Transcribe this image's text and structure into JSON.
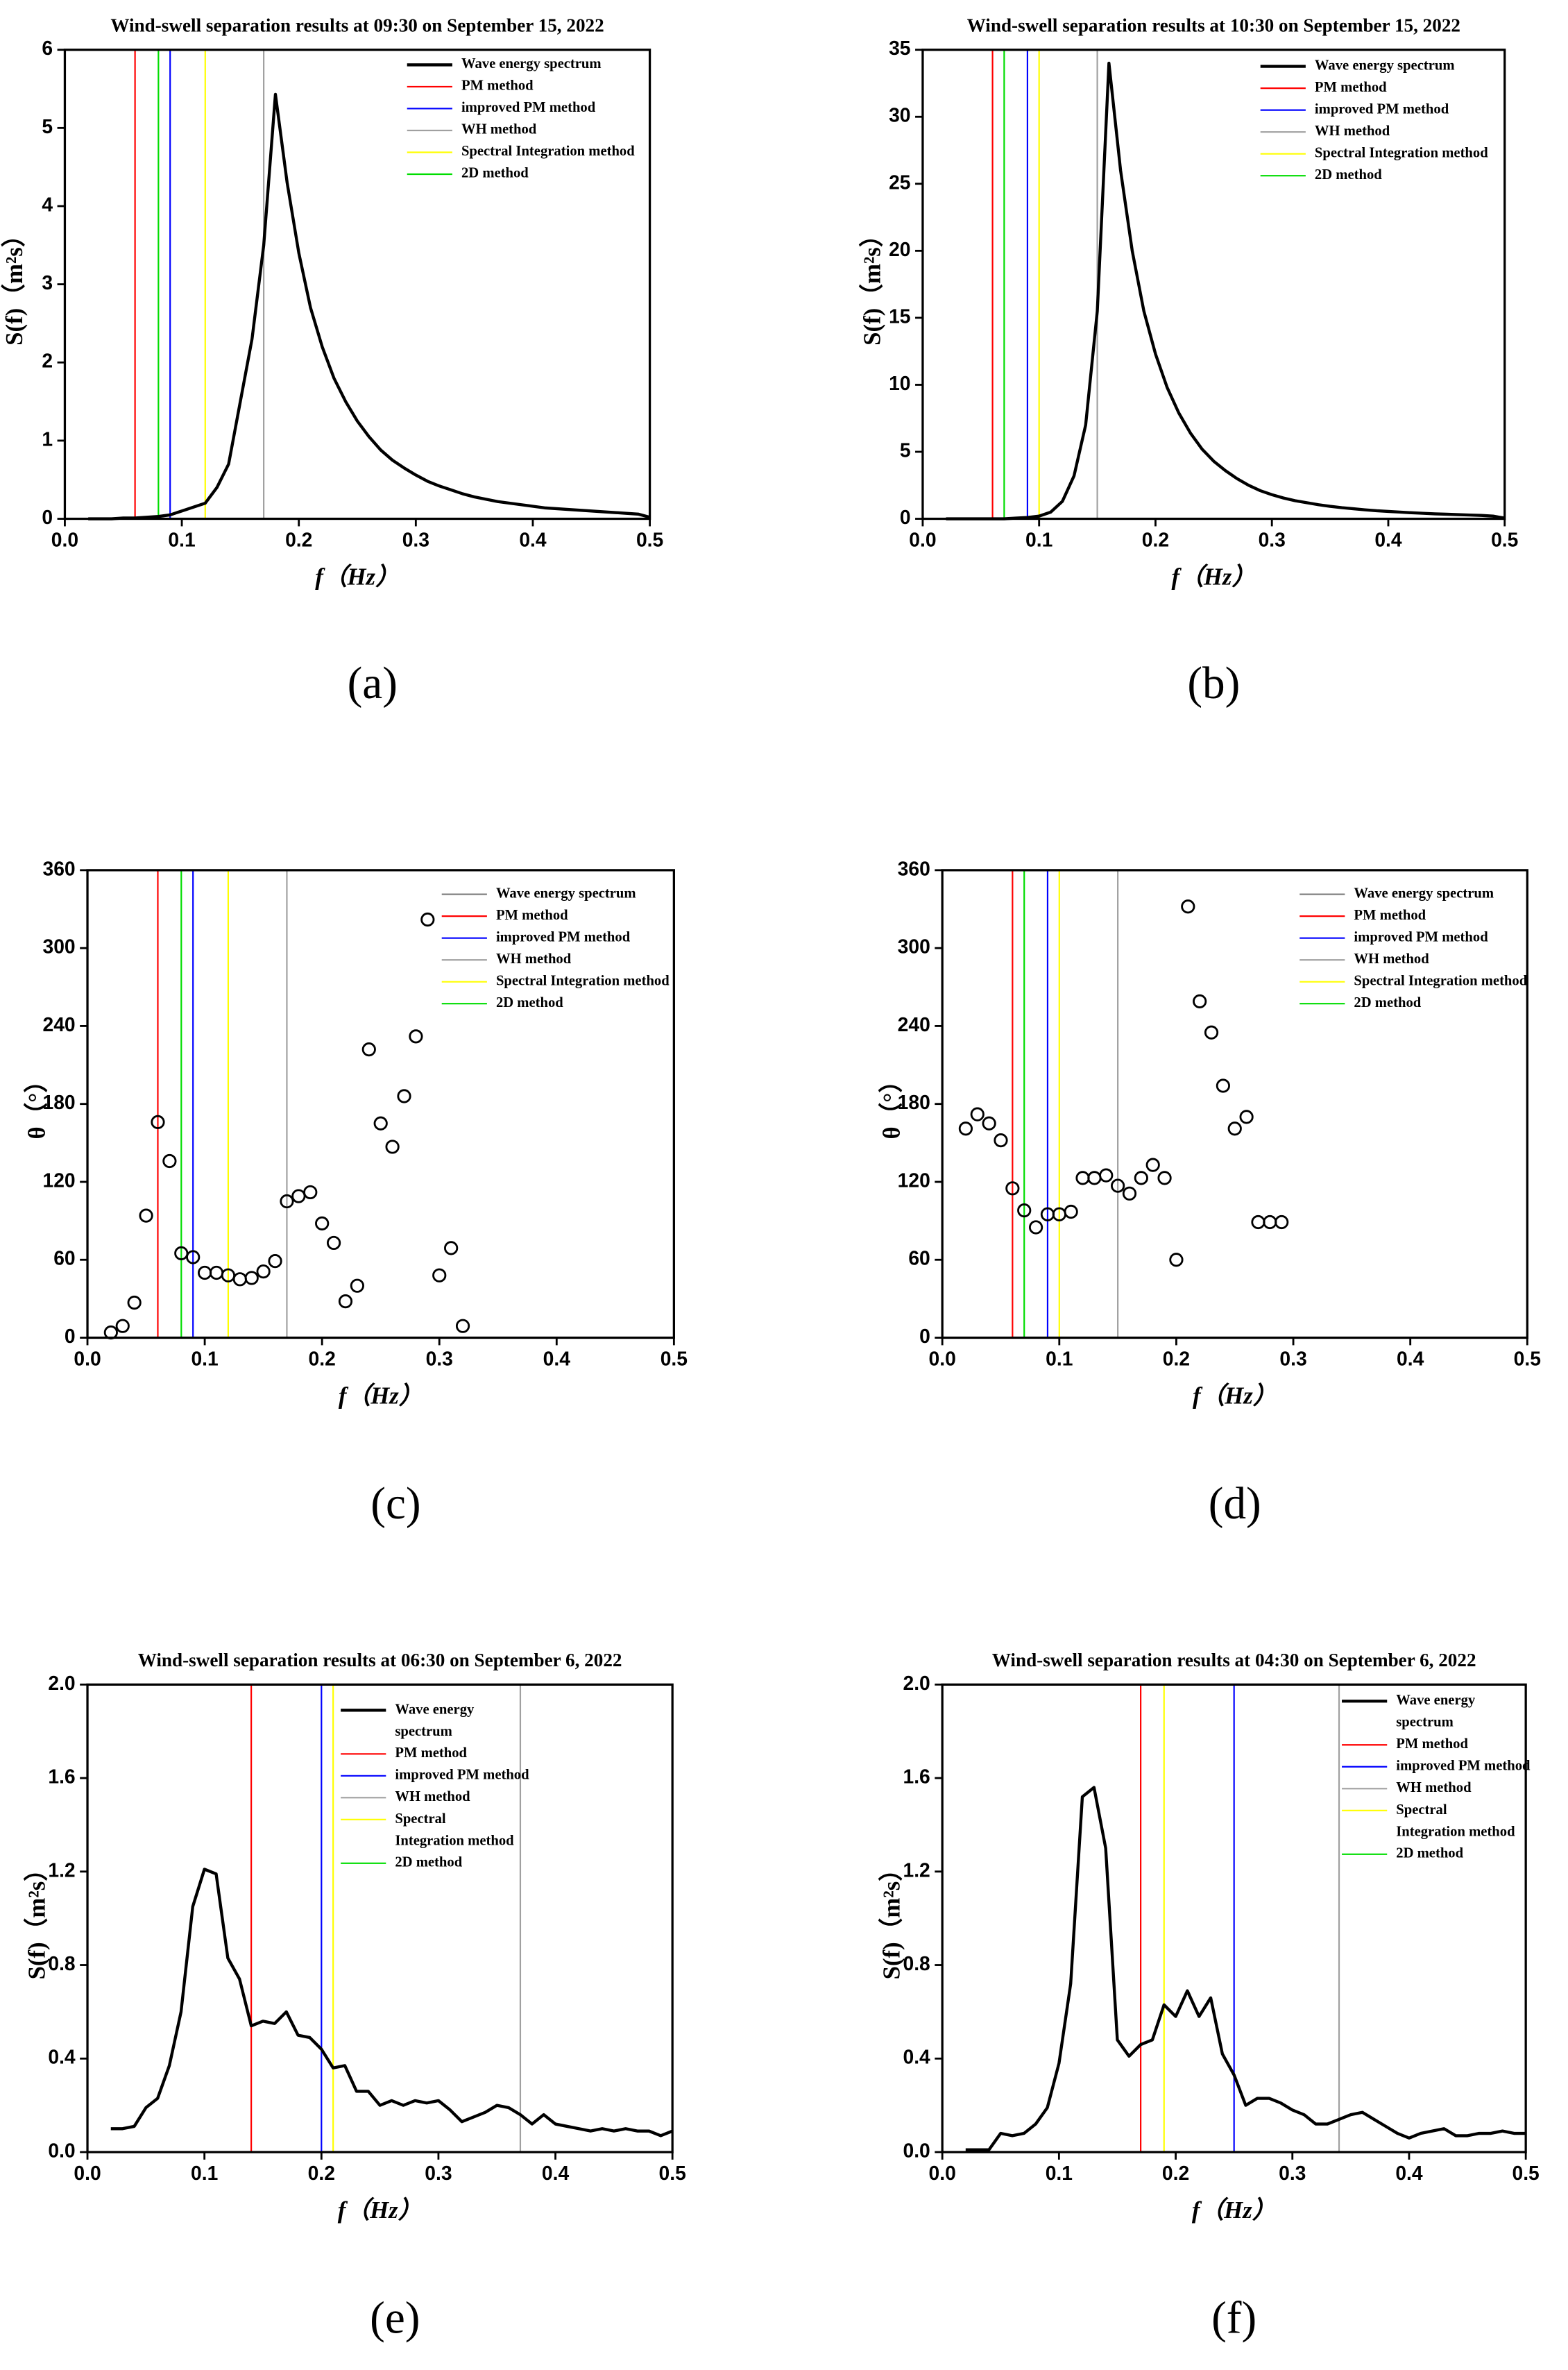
{
  "chart_data": [
    {
      "type": "line",
      "title": "Wind-swell separation results at 09:30 on September 15, 2022",
      "panel_label": "(a)",
      "x_label": "f（Hz）",
      "y_label": "S(f)（m²s）",
      "xlim": [
        0,
        0.5
      ],
      "xticks": [
        {
          "value": 0,
          "label": "0.0"
        },
        0.1,
        0.2,
        0.3,
        0.4,
        0.5
      ],
      "ylim": [
        0,
        6
      ],
      "yticks": [
        0,
        1,
        2,
        3,
        4,
        5,
        6
      ],
      "x": [
        0.02,
        0.03,
        0.04,
        0.05,
        0.06,
        0.07,
        0.08,
        0.09,
        0.1,
        0.11,
        0.12,
        0.13,
        0.14,
        0.15,
        0.16,
        0.17,
        0.18,
        0.19,
        0.2,
        0.21,
        0.22,
        0.23,
        0.24,
        0.25,
        0.26,
        0.27,
        0.28,
        0.29,
        0.3,
        0.31,
        0.32,
        0.33,
        0.34,
        0.35,
        0.36,
        0.37,
        0.38,
        0.39,
        0.4,
        0.41,
        0.42,
        0.43,
        0.44,
        0.45,
        0.46,
        0.47,
        0.48,
        0.49,
        0.5
      ],
      "series": [
        {
          "name": "Wave energy spectrum",
          "color": "#000000",
          "values": [
            0,
            0,
            0,
            0.01,
            0.01,
            0.02,
            0.03,
            0.05,
            0.1,
            0.15,
            0.2,
            0.4,
            0.7,
            1.5,
            2.3,
            3.5,
            5.43,
            4.3,
            3.4,
            2.7,
            2.2,
            1.8,
            1.5,
            1.25,
            1.05,
            0.88,
            0.75,
            0.65,
            0.56,
            0.48,
            0.42,
            0.37,
            0.32,
            0.28,
            0.25,
            0.22,
            0.2,
            0.18,
            0.16,
            0.14,
            0.13,
            0.12,
            0.11,
            0.1,
            0.09,
            0.08,
            0.07,
            0.06,
            0.02
          ]
        },
        {
          "name": "PM method",
          "color": "#ff0000",
          "position": 0.06
        },
        {
          "name": "improved PM method",
          "color": "#0000ff",
          "position": 0.09
        },
        {
          "name": "WH method",
          "color": "#a0a0a0",
          "position": 0.17
        },
        {
          "name": "Spectral Integration method",
          "color": "#ffff00",
          "position": 0.12
        },
        {
          "name": "2D method",
          "color": "#00dd00",
          "position": 0.08
        }
      ]
    },
    {
      "type": "line",
      "title": "Wind-swell separation results at 10:30 on September 15, 2022",
      "panel_label": "(b)",
      "x_label": "f（Hz）",
      "y_label": "S(f)（m²s）",
      "xlim": [
        0,
        0.5
      ],
      "xticks": [
        {
          "value": 0,
          "label": "0.0"
        },
        0.1,
        0.2,
        0.3,
        0.4,
        0.5
      ],
      "ylim": [
        0,
        35
      ],
      "yticks": [
        0,
        5,
        10,
        15,
        20,
        25,
        30,
        35
      ],
      "x": [
        0.02,
        0.03,
        0.04,
        0.05,
        0.06,
        0.07,
        0.08,
        0.09,
        0.1,
        0.11,
        0.12,
        0.13,
        0.14,
        0.15,
        0.16,
        0.17,
        0.18,
        0.19,
        0.2,
        0.21,
        0.22,
        0.23,
        0.24,
        0.25,
        0.26,
        0.27,
        0.28,
        0.29,
        0.3,
        0.31,
        0.32,
        0.33,
        0.34,
        0.35,
        0.36,
        0.37,
        0.38,
        0.39,
        0.4,
        0.41,
        0.42,
        0.43,
        0.44,
        0.45,
        0.46,
        0.47,
        0.48,
        0.49,
        0.5
      ],
      "series": [
        {
          "name": "Wave energy spectrum",
          "color": "#000000",
          "values": [
            0,
            0,
            0,
            0,
            0,
            0,
            0.05,
            0.1,
            0.2,
            0.5,
            1.3,
            3.2,
            7,
            15.5,
            34,
            26,
            20,
            15.5,
            12.3,
            9.8,
            7.9,
            6.4,
            5.2,
            4.3,
            3.6,
            3,
            2.5,
            2.1,
            1.8,
            1.55,
            1.35,
            1.2,
            1.05,
            0.93,
            0.83,
            0.75,
            0.67,
            0.6,
            0.55,
            0.5,
            0.45,
            0.41,
            0.37,
            0.34,
            0.31,
            0.28,
            0.25,
            0.2,
            0.05
          ]
        },
        {
          "name": "PM method",
          "color": "#ff0000",
          "position": 0.06
        },
        {
          "name": "improved PM method",
          "color": "#0000ff",
          "position": 0.09
        },
        {
          "name": "WH method",
          "color": "#a0a0a0",
          "position": 0.15
        },
        {
          "name": "Spectral Integration method",
          "color": "#ffff00",
          "position": 0.1
        },
        {
          "name": "2D method",
          "color": "#00dd00",
          "position": 0.07
        }
      ]
    },
    {
      "type": "scatter",
      "panel_label": "(c)",
      "x_label": "f（Hz）",
      "y_label": "θ（°）",
      "xlim": [
        0,
        0.5
      ],
      "xticks": [
        {
          "value": 0,
          "label": "0.0"
        },
        0.1,
        0.2,
        0.3,
        0.4,
        0.5
      ],
      "ylim": [
        0,
        360
      ],
      "yticks": [
        0,
        60,
        120,
        180,
        240,
        300,
        360
      ],
      "x": [
        0.02,
        0.03,
        0.04,
        0.05,
        0.06,
        0.07,
        0.08,
        0.09,
        0.1,
        0.11,
        0.12,
        0.13,
        0.14,
        0.15,
        0.16,
        0.17,
        0.18,
        0.19,
        0.2,
        0.21,
        0.22,
        0.23,
        0.24,
        0.25,
        0.26,
        0.27,
        0.28,
        0.29,
        0.3,
        0.31,
        0.32
      ],
      "values": [
        4,
        9,
        27,
        94,
        166,
        136,
        65,
        62,
        50,
        50,
        48,
        45,
        46,
        51,
        59,
        105,
        109,
        112,
        88,
        73,
        28,
        40,
        222,
        165,
        147,
        186,
        232,
        322,
        48,
        69,
        9
      ],
      "series": [
        {
          "name": "Wave energy spectrum",
          "color": "#808080"
        },
        {
          "name": "PM method",
          "color": "#ff0000",
          "position": 0.06
        },
        {
          "name": "improved PM method",
          "color": "#0000ff",
          "position": 0.09
        },
        {
          "name": "WH method",
          "color": "#a0a0a0",
          "position": 0.17
        },
        {
          "name": "Spectral Integration method",
          "color": "#ffff00",
          "position": 0.12
        },
        {
          "name": "2D method",
          "color": "#00dd00",
          "position": 0.08
        }
      ]
    },
    {
      "type": "scatter",
      "panel_label": "(d)",
      "x_label": "f（Hz）",
      "y_label": "θ（°）",
      "xlim": [
        0,
        0.5
      ],
      "xticks": [
        {
          "value": 0,
          "label": "0.0"
        },
        0.1,
        0.2,
        0.3,
        0.4,
        0.5
      ],
      "ylim": [
        0,
        360
      ],
      "yticks": [
        0,
        60,
        120,
        180,
        240,
        300,
        360
      ],
      "x": [
        0.02,
        0.03,
        0.04,
        0.05,
        0.06,
        0.07,
        0.08,
        0.09,
        0.1,
        0.11,
        0.12,
        0.13,
        0.14,
        0.15,
        0.16,
        0.17,
        0.18,
        0.19,
        0.2,
        0.21,
        0.22,
        0.23,
        0.24,
        0.25,
        0.26,
        0.27,
        0.28,
        0.29
      ],
      "values": [
        161,
        172,
        165,
        152,
        115,
        98,
        85,
        95,
        95,
        97,
        123,
        123,
        125,
        117,
        111,
        123,
        133,
        123,
        60,
        332,
        259,
        235,
        194,
        161,
        170,
        89,
        89,
        89
      ],
      "series": [
        {
          "name": "Wave energy spectrum",
          "color": "#808080"
        },
        {
          "name": "PM method",
          "color": "#ff0000",
          "position": 0.06
        },
        {
          "name": "improved PM method",
          "color": "#0000ff",
          "position": 0.09
        },
        {
          "name": "WH method",
          "color": "#a0a0a0",
          "position": 0.15
        },
        {
          "name": "Spectral Integration method",
          "color": "#ffff00",
          "position": 0.1
        },
        {
          "name": "2D method",
          "color": "#00dd00",
          "position": 0.07
        }
      ]
    },
    {
      "type": "line",
      "title": "Wind-swell separation results at 06:30 on September 6, 2022",
      "panel_label": "(e)",
      "x_label": "f（Hz）",
      "y_label": "S(f)（m²s）",
      "xlim": [
        0,
        0.5
      ],
      "xticks": [
        {
          "value": 0,
          "label": "0.0"
        },
        0.1,
        0.2,
        0.3,
        0.4,
        0.5
      ],
      "ylim": [
        0,
        2
      ],
      "yticks": [
        {
          "value": 0,
          "label": "0.0"
        },
        0.4,
        0.8,
        1.2,
        1.6,
        {
          "value": 2,
          "label": "2.0"
        }
      ],
      "x": [
        0.02,
        0.03,
        0.04,
        0.05,
        0.06,
        0.07,
        0.08,
        0.09,
        0.1,
        0.11,
        0.12,
        0.13,
        0.14,
        0.15,
        0.16,
        0.17,
        0.18,
        0.19,
        0.2,
        0.21,
        0.22,
        0.23,
        0.24,
        0.25,
        0.26,
        0.27,
        0.28,
        0.29,
        0.3,
        0.31,
        0.32,
        0.33,
        0.34,
        0.35,
        0.36,
        0.37,
        0.38,
        0.39,
        0.4,
        0.41,
        0.42,
        0.43,
        0.44,
        0.45,
        0.46,
        0.47,
        0.48,
        0.49,
        0.5
      ],
      "series": [
        {
          "name": "Wave energy spectrum",
          "color": "#000000",
          "values": [
            0.1,
            0.1,
            0.11,
            0.19,
            0.23,
            0.37,
            0.6,
            1.05,
            1.21,
            1.19,
            0.83,
            0.74,
            0.54,
            0.56,
            0.55,
            0.6,
            0.5,
            0.49,
            0.44,
            0.36,
            0.37,
            0.26,
            0.26,
            0.2,
            0.22,
            0.2,
            0.22,
            0.21,
            0.22,
            0.18,
            0.13,
            0.15,
            0.17,
            0.2,
            0.19,
            0.16,
            0.12,
            0.16,
            0.12,
            0.11,
            0.1,
            0.09,
            0.1,
            0.09,
            0.1,
            0.09,
            0.09,
            0.07,
            0.09
          ]
        },
        {
          "name": "PM method",
          "color": "#ff0000",
          "position": 0.14
        },
        {
          "name": "improved PM method",
          "color": "#0000ff",
          "position": 0.2
        },
        {
          "name": "WH method",
          "color": "#a0a0a0",
          "position": 0.37
        },
        {
          "name": "Spectral Integration method",
          "color": "#ffff00",
          "position": 0.21
        },
        {
          "name": "2D method",
          "color": "#00dd00"
        }
      ]
    },
    {
      "type": "line",
      "title": "Wind-swell separation results at 04:30 on September 6, 2022",
      "panel_label": "(f)",
      "x_label": "f（Hz）",
      "y_label": "S(f)（m²s）",
      "xlim": [
        0,
        0.5
      ],
      "xticks": [
        {
          "value": 0,
          "label": "0.0"
        },
        0.1,
        0.2,
        0.3,
        0.4,
        0.5
      ],
      "ylim": [
        0,
        2
      ],
      "yticks": [
        {
          "value": 0,
          "label": "0.0"
        },
        0.4,
        0.8,
        1.2,
        1.6,
        {
          "value": 2,
          "label": "2.0"
        }
      ],
      "x": [
        0.02,
        0.03,
        0.04,
        0.05,
        0.06,
        0.07,
        0.08,
        0.09,
        0.1,
        0.11,
        0.12,
        0.13,
        0.14,
        0.15,
        0.16,
        0.17,
        0.18,
        0.19,
        0.2,
        0.21,
        0.22,
        0.23,
        0.24,
        0.25,
        0.26,
        0.27,
        0.28,
        0.29,
        0.3,
        0.31,
        0.32,
        0.33,
        0.34,
        0.35,
        0.36,
        0.37,
        0.38,
        0.39,
        0.4,
        0.41,
        0.42,
        0.43,
        0.44,
        0.45,
        0.46,
        0.47,
        0.48,
        0.49,
        0.5
      ],
      "series": [
        {
          "name": "Wave energy spectrum",
          "color": "#000000",
          "values": [
            0.01,
            0.01,
            0.01,
            0.08,
            0.07,
            0.08,
            0.12,
            0.19,
            0.38,
            0.72,
            1.52,
            1.56,
            1.3,
            0.48,
            0.41,
            0.46,
            0.48,
            0.63,
            0.58,
            0.69,
            0.58,
            0.66,
            0.42,
            0.33,
            0.2,
            0.23,
            0.23,
            0.21,
            0.18,
            0.16,
            0.12,
            0.12,
            0.14,
            0.16,
            0.17,
            0.14,
            0.11,
            0.08,
            0.06,
            0.08,
            0.09,
            0.1,
            0.07,
            0.07,
            0.08,
            0.08,
            0.09,
            0.08,
            0.08
          ]
        },
        {
          "name": "PM method",
          "color": "#ff0000",
          "position": 0.17
        },
        {
          "name": "improved PM method",
          "color": "#0000ff",
          "position": 0.25
        },
        {
          "name": "WH method",
          "color": "#a0a0a0",
          "position": 0.34
        },
        {
          "name": "Spectral Integration method",
          "color": "#ffff00",
          "position": 0.19
        },
        {
          "name": "2D method",
          "color": "#00dd00"
        }
      ]
    }
  ]
}
